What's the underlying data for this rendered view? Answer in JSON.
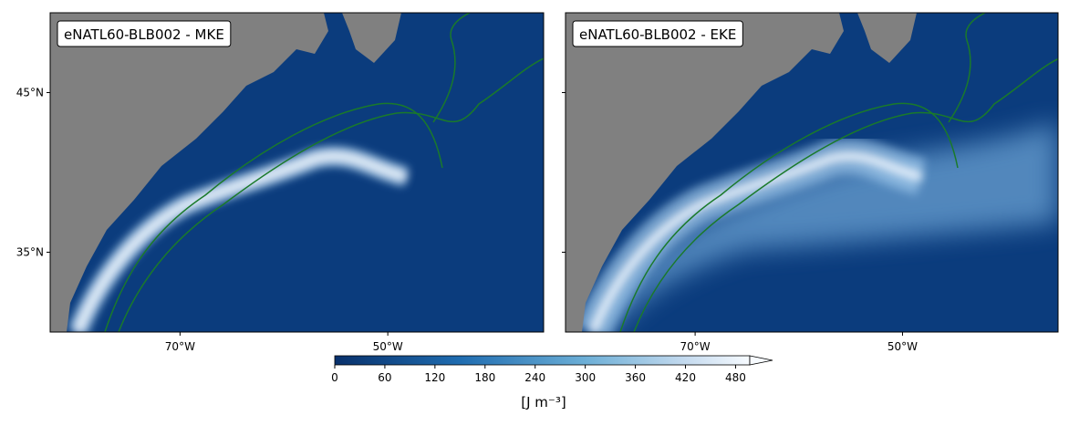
{
  "panels": [
    {
      "title": "eNATL60-BLB002 - MKE",
      "xlim": [
        -82.5,
        -35
      ],
      "ylim": [
        30,
        50
      ],
      "xticks": [
        {
          "value": -70,
          "label": "70°W"
        },
        {
          "value": -50,
          "label": "50°W"
        }
      ],
      "yticks": [
        {
          "value": 35,
          "label": "35°N"
        },
        {
          "value": 45,
          "label": "45°N"
        }
      ]
    },
    {
      "title": "eNATL60-BLB002 - EKE",
      "xlim": [
        -82.5,
        -35
      ],
      "ylim": [
        30,
        50
      ],
      "xticks": [
        {
          "value": -70,
          "label": "70°W"
        },
        {
          "value": -50,
          "label": "50°W"
        }
      ],
      "yticks": [
        35,
        45
      ]
    }
  ],
  "colorbar": {
    "label": "[J m⁻³]",
    "lim": [
      0,
      497
    ],
    "ticks": [
      0,
      60,
      120,
      180,
      240,
      300,
      360,
      420,
      480
    ]
  }
}
